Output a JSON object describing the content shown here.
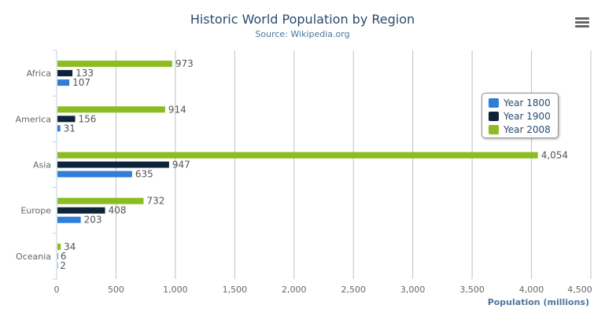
{
  "chart_data": {
    "type": "bar",
    "orientation": "horizontal",
    "title": "Historic World Population by Region",
    "subtitle": "Source: Wikipedia.org",
    "categories": [
      "Africa",
      "America",
      "Asia",
      "Europe",
      "Oceania"
    ],
    "series": [
      {
        "name": "Year 1800",
        "color": "#2f7ed8",
        "values": [
          107,
          31,
          635,
          203,
          2
        ]
      },
      {
        "name": "Year 1900",
        "color": "#0d233a",
        "values": [
          133,
          156,
          947,
          408,
          6
        ]
      },
      {
        "name": "Year 2008",
        "color": "#8bbc21",
        "values": [
          973,
          914,
          4054,
          732,
          34
        ]
      }
    ],
    "data_labels": {
      "Year 1800": [
        "107",
        "31",
        "635",
        "203",
        "2"
      ],
      "Year 1900": [
        "133",
        "156",
        "947",
        "408",
        "6"
      ],
      "Year 2008": [
        "973",
        "914",
        "4,054",
        "732",
        "34"
      ]
    },
    "xlabel": "",
    "ylabel": "Population (millions)",
    "ylim": [
      0,
      4500
    ],
    "ticks": [
      "0",
      "500",
      "1,000",
      "1,500",
      "2,000",
      "2,500",
      "3,000",
      "3,500",
      "4,000",
      "4,500"
    ],
    "grid": true,
    "legend_position": "right"
  },
  "menu_icon": "hamburger-menu-icon"
}
